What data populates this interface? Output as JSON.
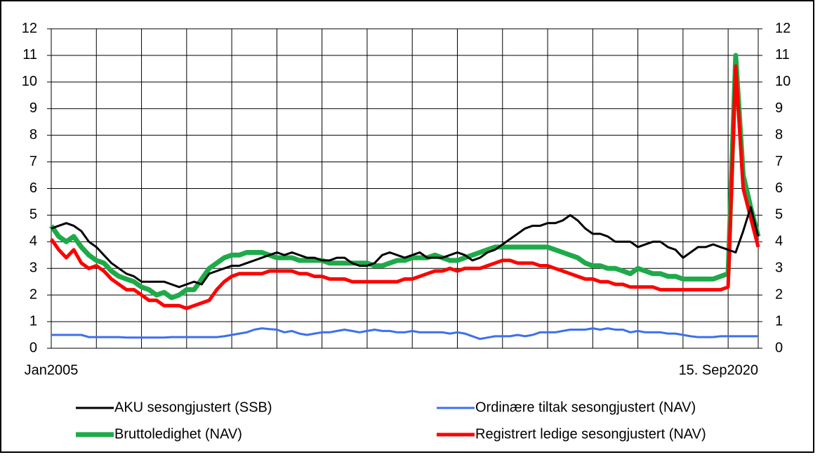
{
  "chart_data": {
    "type": "line",
    "categories": [
      "Jan2005",
      null,
      null,
      null,
      null,
      null,
      null,
      null,
      null,
      null,
      null,
      null,
      null,
      null,
      null,
      null,
      null,
      null,
      null,
      null,
      null,
      null,
      null,
      null,
      null,
      null,
      null,
      null,
      null,
      null,
      null,
      null,
      null,
      null,
      null,
      null,
      null,
      null,
      null,
      null,
      null,
      null,
      null,
      null,
      null,
      null,
      null,
      null,
      null,
      null,
      null,
      null,
      null,
      null,
      null,
      null,
      null,
      null,
      null,
      null,
      null,
      null,
      null,
      null,
      null,
      null,
      null,
      null,
      null,
      null,
      null,
      null,
      null,
      null,
      null,
      null,
      null,
      null,
      null,
      null,
      null,
      null,
      null,
      null,
      null,
      null,
      null,
      null,
      null,
      null,
      null,
      null,
      null,
      null,
      "15. Sep2020"
    ],
    "series": [
      {
        "name": "AKU sesongjustert (SSB)",
        "color": "#000000",
        "line_width": 3,
        "values": [
          4.5,
          4.6,
          4.7,
          4.6,
          4.4,
          4.0,
          3.8,
          3.5,
          3.2,
          3.0,
          2.8,
          2.7,
          2.5,
          2.5,
          2.5,
          2.5,
          2.4,
          2.3,
          2.4,
          2.5,
          2.4,
          2.8,
          2.9,
          3.0,
          3.1,
          3.1,
          3.2,
          3.3,
          3.4,
          3.5,
          3.6,
          3.5,
          3.6,
          3.5,
          3.4,
          3.4,
          3.3,
          3.3,
          3.4,
          3.4,
          3.2,
          3.1,
          3.1,
          3.2,
          3.5,
          3.6,
          3.5,
          3.4,
          3.5,
          3.6,
          3.4,
          3.4,
          3.4,
          3.5,
          3.6,
          3.5,
          3.3,
          3.4,
          3.6,
          3.7,
          3.9,
          4.1,
          4.3,
          4.5,
          4.6,
          4.6,
          4.7,
          4.7,
          4.8,
          5.0,
          4.8,
          4.5,
          4.3,
          4.3,
          4.2,
          4.0,
          4.0,
          4.0,
          3.8,
          3.9,
          4.0,
          4.0,
          3.8,
          3.7,
          3.4,
          3.6,
          3.8,
          3.8,
          3.9,
          3.8,
          3.7,
          3.6,
          4.4,
          5.3,
          4.2
        ]
      },
      {
        "name": "Ordinære tiltak sesongjustert (NAV)",
        "color": "#3d6ff0",
        "line_width": 3,
        "values": [
          0.5,
          0.5,
          0.5,
          0.5,
          0.5,
          0.42,
          0.42,
          0.42,
          0.42,
          0.42,
          0.4,
          0.4,
          0.4,
          0.4,
          0.4,
          0.4,
          0.42,
          0.42,
          0.42,
          0.42,
          0.42,
          0.42,
          0.42,
          0.45,
          0.5,
          0.55,
          0.6,
          0.7,
          0.75,
          0.72,
          0.7,
          0.6,
          0.65,
          0.55,
          0.5,
          0.55,
          0.6,
          0.6,
          0.65,
          0.7,
          0.65,
          0.6,
          0.65,
          0.7,
          0.65,
          0.65,
          0.6,
          0.6,
          0.65,
          0.6,
          0.6,
          0.6,
          0.6,
          0.55,
          0.6,
          0.55,
          0.45,
          0.35,
          0.4,
          0.45,
          0.45,
          0.45,
          0.5,
          0.45,
          0.5,
          0.6,
          0.6,
          0.6,
          0.65,
          0.7,
          0.7,
          0.7,
          0.75,
          0.7,
          0.75,
          0.7,
          0.7,
          0.6,
          0.65,
          0.6,
          0.6,
          0.6,
          0.55,
          0.55,
          0.5,
          0.45,
          0.42,
          0.42,
          0.42,
          0.45,
          0.45,
          0.45,
          0.45,
          0.45,
          0.45
        ]
      },
      {
        "name": "Bruttoledighet (NAV)",
        "color": "#1faa4a",
        "line_width": 7,
        "values": [
          4.6,
          4.2,
          4.0,
          4.2,
          3.8,
          3.5,
          3.3,
          3.2,
          2.9,
          2.7,
          2.6,
          2.5,
          2.3,
          2.2,
          2.0,
          2.1,
          1.9,
          2.0,
          2.2,
          2.2,
          2.6,
          3.0,
          3.2,
          3.4,
          3.5,
          3.5,
          3.6,
          3.6,
          3.6,
          3.5,
          3.4,
          3.4,
          3.4,
          3.3,
          3.3,
          3.3,
          3.3,
          3.2,
          3.2,
          3.2,
          3.2,
          3.2,
          3.2,
          3.1,
          3.1,
          3.2,
          3.3,
          3.3,
          3.4,
          3.4,
          3.4,
          3.5,
          3.4,
          3.3,
          3.3,
          3.4,
          3.5,
          3.6,
          3.7,
          3.8,
          3.8,
          3.8,
          3.8,
          3.8,
          3.8,
          3.8,
          3.8,
          3.7,
          3.6,
          3.5,
          3.4,
          3.2,
          3.1,
          3.1,
          3.0,
          3.0,
          2.9,
          2.8,
          3.0,
          2.9,
          2.8,
          2.8,
          2.7,
          2.7,
          2.6,
          2.6,
          2.6,
          2.6,
          2.6,
          2.7,
          2.8,
          11.0,
          6.5,
          5.3,
          4.2
        ]
      },
      {
        "name": "Registrert ledige sesongjustert (NAV)",
        "color": "#ff0000",
        "line_width": 5,
        "values": [
          4.1,
          3.7,
          3.4,
          3.7,
          3.2,
          3.0,
          3.1,
          2.9,
          2.6,
          2.4,
          2.2,
          2.2,
          2.0,
          1.8,
          1.8,
          1.6,
          1.6,
          1.6,
          1.5,
          1.6,
          1.7,
          1.8,
          2.2,
          2.5,
          2.7,
          2.8,
          2.8,
          2.8,
          2.8,
          2.9,
          2.9,
          2.9,
          2.9,
          2.8,
          2.8,
          2.7,
          2.7,
          2.6,
          2.6,
          2.6,
          2.5,
          2.5,
          2.5,
          2.5,
          2.5,
          2.5,
          2.5,
          2.6,
          2.6,
          2.7,
          2.8,
          2.9,
          2.9,
          3.0,
          2.9,
          3.0,
          3.0,
          3.0,
          3.1,
          3.2,
          3.3,
          3.3,
          3.2,
          3.2,
          3.2,
          3.1,
          3.1,
          3.0,
          2.9,
          2.8,
          2.7,
          2.6,
          2.6,
          2.5,
          2.5,
          2.4,
          2.4,
          2.3,
          2.3,
          2.3,
          2.3,
          2.2,
          2.2,
          2.2,
          2.2,
          2.2,
          2.2,
          2.2,
          2.2,
          2.2,
          2.3,
          10.6,
          6.0,
          4.9,
          3.8
        ]
      }
    ],
    "ylim": [
      0,
      12
    ],
    "yticks": [
      0,
      1,
      2,
      3,
      4,
      5,
      6,
      7,
      8,
      9,
      10,
      11,
      12
    ],
    "y2lim": [
      0,
      12
    ],
    "y2ticks": [
      0,
      1,
      2,
      3,
      4,
      5,
      6,
      7,
      8,
      9,
      10,
      11,
      12
    ],
    "grid": true,
    "legend": "bottom"
  }
}
